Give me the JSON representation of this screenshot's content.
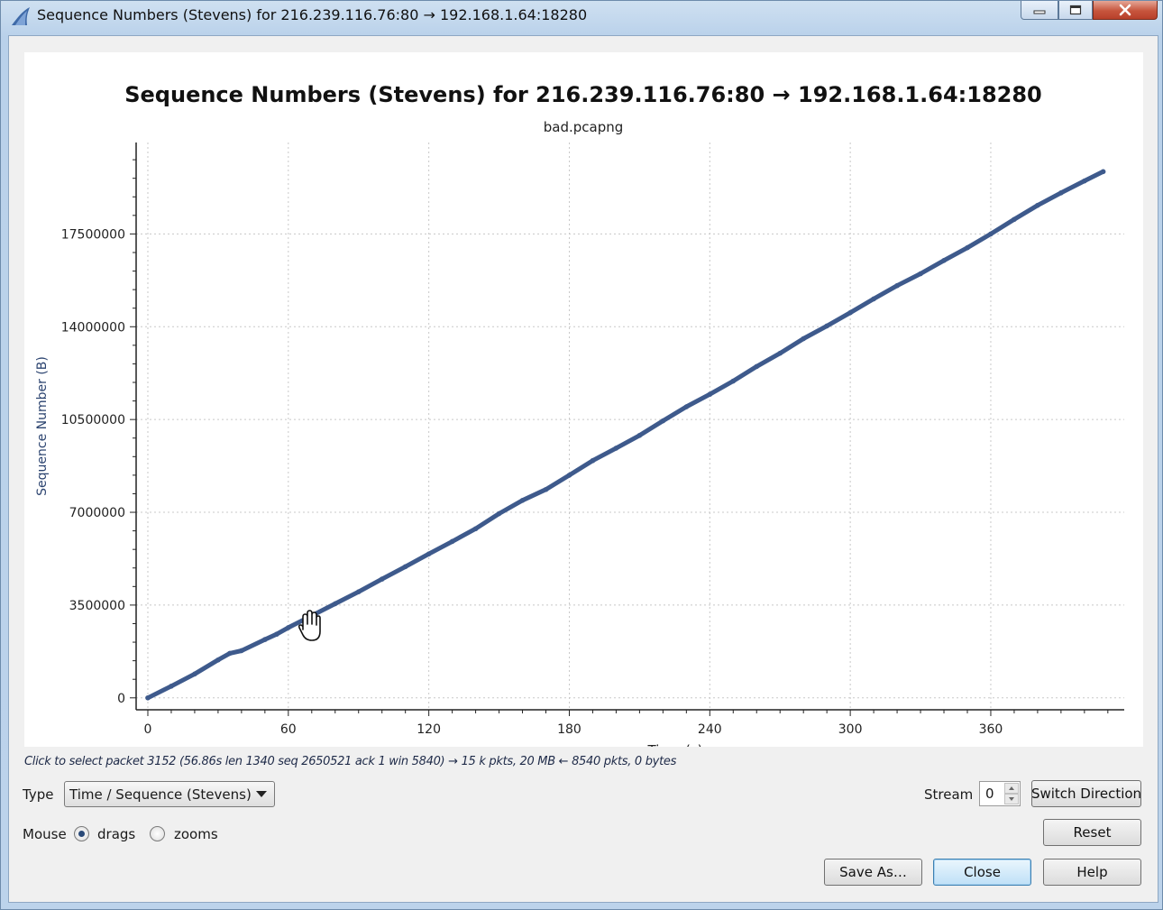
{
  "window": {
    "title": "Sequence Numbers (Stevens) for 216.239.116.76:80 → 192.168.1.64:18280"
  },
  "chart_data": {
    "type": "scatter",
    "title": "Sequence Numbers (Stevens) for 216.239.116.76:80 → 192.168.1.64:18280",
    "subtitle": "bad.pcapng",
    "xlabel": "Time (s)",
    "ylabel": "Sequence Number (B)",
    "xlim": [
      -5,
      417
    ],
    "ylim": [
      -450000,
      20950000
    ],
    "x_ticks": [
      0,
      60,
      120,
      180,
      240,
      300,
      360
    ],
    "y_ticks": [
      0,
      3500000,
      7000000,
      10500000,
      14000000,
      17500000
    ],
    "grid": true,
    "color": "#3e5a8c",
    "series": [
      {
        "points": [
          [
            0,
            0
          ],
          [
            10,
            440000
          ],
          [
            20,
            900000
          ],
          [
            30,
            1430000
          ],
          [
            35,
            1680000
          ],
          [
            40,
            1780000
          ],
          [
            50,
            2200000
          ],
          [
            55,
            2400000
          ],
          [
            60,
            2650000
          ],
          [
            70,
            3100000
          ],
          [
            80,
            3550000
          ],
          [
            90,
            4000000
          ],
          [
            100,
            4480000
          ],
          [
            110,
            4950000
          ],
          [
            120,
            5430000
          ],
          [
            130,
            5900000
          ],
          [
            140,
            6380000
          ],
          [
            150,
            6950000
          ],
          [
            160,
            7450000
          ],
          [
            170,
            7860000
          ],
          [
            180,
            8400000
          ],
          [
            190,
            8950000
          ],
          [
            200,
            9420000
          ],
          [
            210,
            9900000
          ],
          [
            220,
            10450000
          ],
          [
            230,
            10980000
          ],
          [
            240,
            11450000
          ],
          [
            250,
            11950000
          ],
          [
            260,
            12500000
          ],
          [
            270,
            13000000
          ],
          [
            280,
            13550000
          ],
          [
            290,
            14030000
          ],
          [
            300,
            14530000
          ],
          [
            310,
            15050000
          ],
          [
            320,
            15550000
          ],
          [
            330,
            16000000
          ],
          [
            340,
            16500000
          ],
          [
            350,
            16980000
          ],
          [
            360,
            17500000
          ],
          [
            370,
            18050000
          ],
          [
            380,
            18580000
          ],
          [
            390,
            19050000
          ],
          [
            400,
            19500000
          ],
          [
            408,
            19850000
          ]
        ]
      }
    ]
  },
  "status_text": "Click to select packet 3152 (56.86s len 1340 seq 2650521 ack 1 win 5840) → 15 k pkts, 20 MB ← 8540 pkts, 0 bytes",
  "controls": {
    "type_label": "Type",
    "type_value": "Time / Sequence (Stevens)",
    "stream_label": "Stream",
    "stream_value": "0",
    "switch_direction": "Switch Direction",
    "mouse_label": "Mouse",
    "drags_label": "drags",
    "zooms_label": "zooms",
    "reset": "Reset",
    "save_as": "Save As…",
    "close": "Close",
    "help": "Help"
  }
}
